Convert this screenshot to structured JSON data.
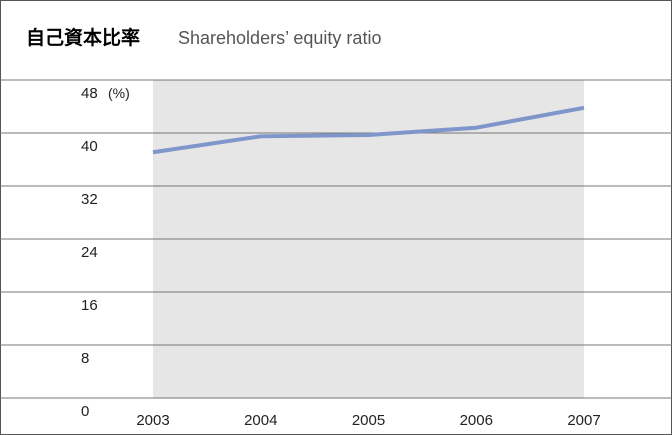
{
  "chart_data": {
    "type": "line",
    "title": "自己資本比率",
    "subtitle": "Shareholders’ equity ratio",
    "y_unit": "(%)",
    "categories": [
      "2003",
      "2004",
      "2005",
      "2006",
      "2007"
    ],
    "series": [
      {
        "name": "Shareholders’ equity ratio",
        "color": "#7f96cb",
        "values": [
          37.1,
          39.5,
          39.7,
          40.8,
          43.8
        ]
      }
    ],
    "ylim": [
      0,
      48
    ],
    "yticks": [
      0,
      8,
      16,
      24,
      32,
      40,
      48
    ],
    "grid": true,
    "shade_color": "#e6e6e6"
  }
}
